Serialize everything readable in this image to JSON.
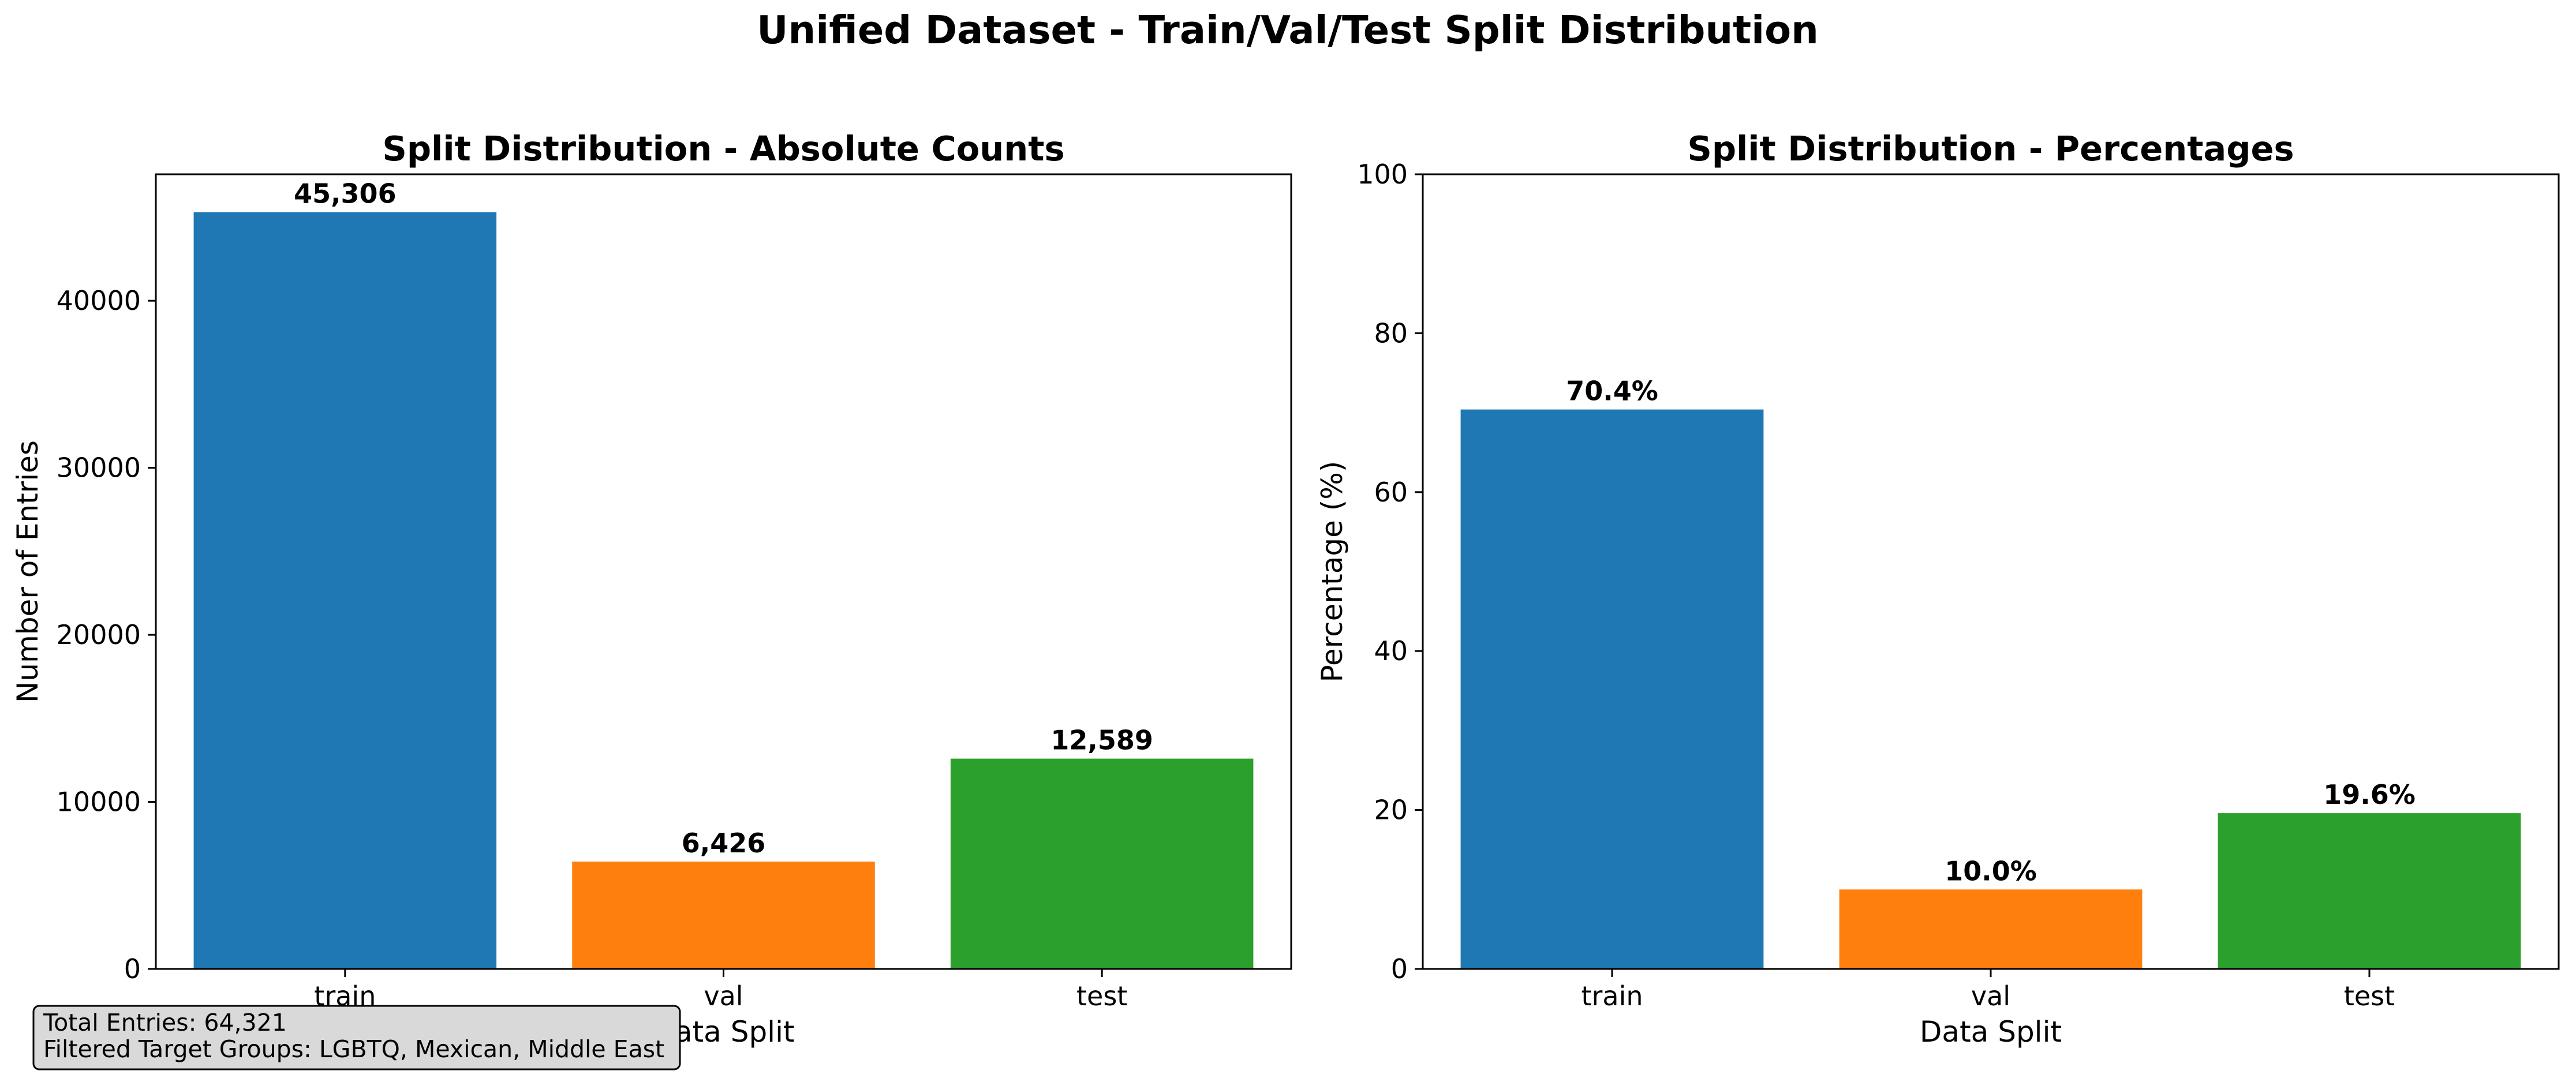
{
  "suptitle": "Unified Dataset - Train/Val/Test Split Distribution",
  "chart_data": [
    {
      "type": "bar",
      "title": "Split Distribution - Absolute Counts",
      "xlabel": "Data Split",
      "ylabel": "Number of Entries",
      "categories": [
        "train",
        "val",
        "test"
      ],
      "values": [
        45306,
        6426,
        12589
      ],
      "data_labels": [
        "45,306",
        "6,426",
        "12,589"
      ],
      "colors": [
        "#1f77b4",
        "#ff7f0e",
        "#2ca02c"
      ],
      "ylim": [
        0,
        47571
      ],
      "yticks": [
        0,
        10000,
        20000,
        30000,
        40000
      ],
      "ytick_labels": [
        "0",
        "10000",
        "20000",
        "30000",
        "40000"
      ],
      "grid": false
    },
    {
      "type": "bar",
      "title": "Split Distribution - Percentages",
      "xlabel": "Data Split",
      "ylabel": "Percentage (%)",
      "categories": [
        "train",
        "val",
        "test"
      ],
      "values": [
        70.4,
        10.0,
        19.6
      ],
      "data_labels": [
        "70.4%",
        "10.0%",
        "19.6%"
      ],
      "colors": [
        "#1f77b4",
        "#ff7f0e",
        "#2ca02c"
      ],
      "ylim": [
        0,
        100
      ],
      "yticks": [
        0,
        20,
        40,
        60,
        80,
        100
      ],
      "ytick_labels": [
        "0",
        "20",
        "40",
        "60",
        "80",
        "100"
      ],
      "grid": false
    }
  ],
  "info_box": {
    "line1": "Total Entries: 64,321",
    "line2": "Filtered Target Groups: LGBTQ, Mexican, Middle East"
  }
}
